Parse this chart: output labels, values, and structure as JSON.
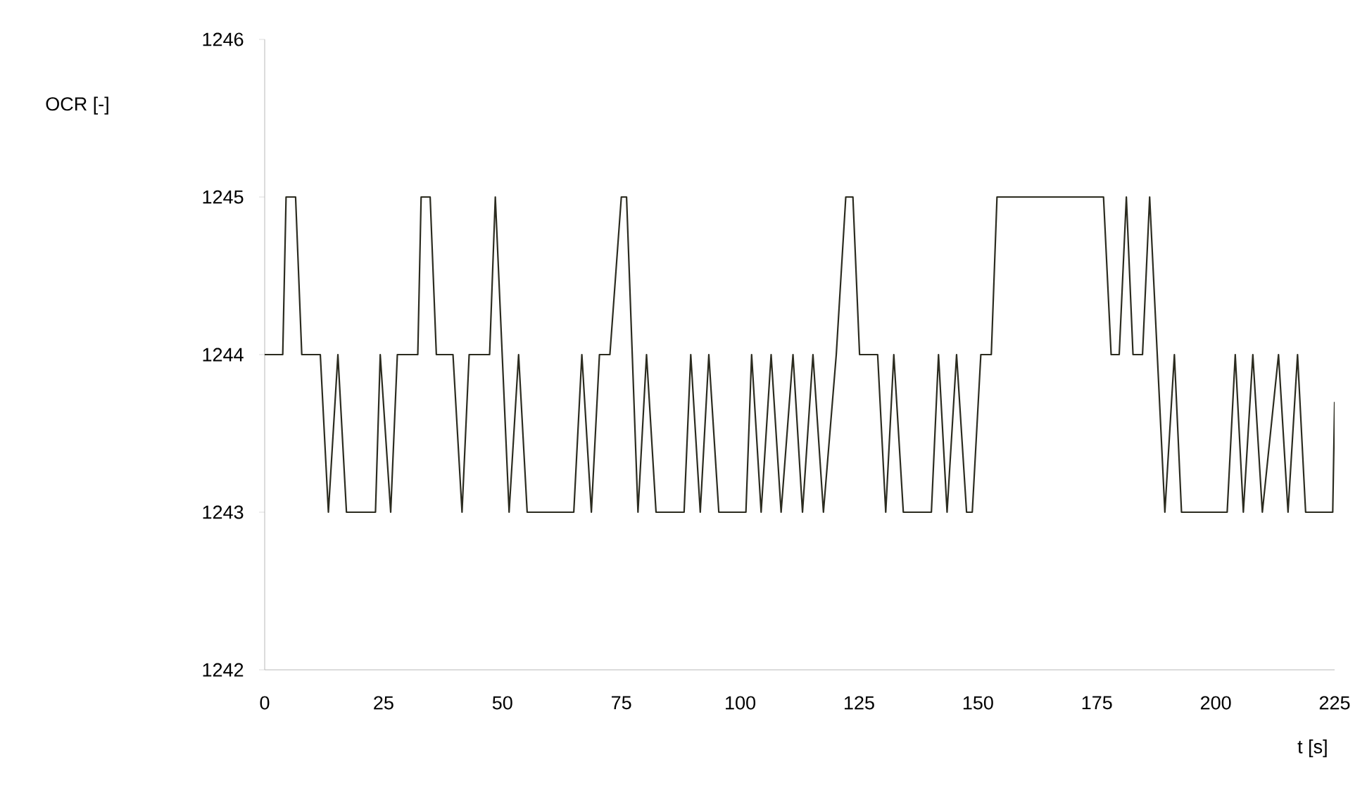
{
  "chart_data": {
    "type": "line",
    "xlabel": "t [s]",
    "ylabel": "OCR [-]",
    "x": [
      0,
      3.8,
      4.5,
      6.5,
      7.8,
      11.7,
      13.4,
      15.4,
      17.2,
      23.3,
      24.3,
      26.5,
      27.9,
      32.2,
      32.9,
      34.8,
      36.1,
      39.6,
      41.5,
      43.0,
      47.3,
      48.5,
      51.4,
      53.4,
      55.2,
      65.0,
      66.7,
      68.7,
      70.4,
      72.6,
      75.0,
      76.1,
      78.5,
      80.3,
      82.3,
      88.2,
      89.6,
      91.6,
      93.4,
      95.5,
      101.2,
      102.4,
      104.4,
      106.5,
      108.6,
      111.1,
      113.1,
      115.3,
      117.5,
      120.2,
      122.2,
      123.7,
      125.1,
      128.9,
      130.6,
      132.3,
      134.3,
      140.2,
      141.7,
      143.5,
      145.5,
      147.6,
      148.8,
      150.6,
      152.8,
      154.0,
      176.4,
      178.0,
      179.7,
      181.2,
      182.6,
      184.6,
      186.1,
      189.3,
      191.3,
      192.8,
      202.4,
      204.1,
      205.8,
      207.8,
      209.8,
      213.2,
      215.2,
      217.2,
      218.9,
      224.6,
      225
    ],
    "series": [
      {
        "color": "#2b2b1f",
        "values": [
          1244,
          1244,
          1245,
          1245,
          1244,
          1244,
          1243,
          1244,
          1243,
          1243,
          1244,
          1243,
          1244,
          1244,
          1245,
          1245,
          1244,
          1244,
          1243,
          1244,
          1244,
          1245,
          1243,
          1244,
          1243,
          1243,
          1244,
          1243,
          1244,
          1244,
          1245,
          1245,
          1243,
          1244,
          1243,
          1243,
          1244,
          1243,
          1244,
          1243,
          1243,
          1244,
          1243,
          1244,
          1243,
          1244,
          1243,
          1244,
          1243,
          1244,
          1245,
          1245,
          1244,
          1244,
          1243,
          1244,
          1243,
          1243,
          1244,
          1243,
          1244,
          1243,
          1243,
          1244,
          1244,
          1245,
          1245,
          1244,
          1244,
          1245,
          1244,
          1244,
          1245,
          1243,
          1244,
          1243,
          1243,
          1244,
          1243,
          1244,
          1243,
          1244,
          1243,
          1244,
          1243,
          1243,
          1243.7
        ]
      }
    ],
    "xlim": [
      0,
      225
    ],
    "xticks": [
      0,
      25,
      50,
      75,
      100,
      125,
      150,
      175,
      200,
      225
    ],
    "ylim": [
      1242,
      1246
    ],
    "yticks": [
      1242,
      1243,
      1244,
      1245,
      1246
    ],
    "grid": false,
    "marker": "none",
    "line_style": "solid"
  }
}
